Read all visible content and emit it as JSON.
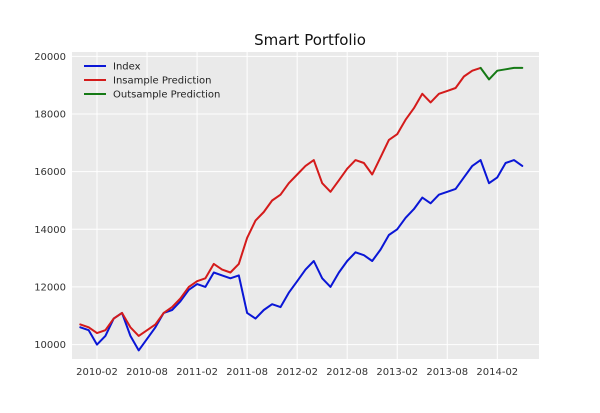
{
  "chart_data": {
    "type": "line",
    "title": "Smart Portfolio",
    "xlabel": "",
    "ylabel": "",
    "x_ticks": [
      "2010-02",
      "2010-08",
      "2011-02",
      "2011-08",
      "2012-02",
      "2012-08",
      "2013-02",
      "2013-08",
      "2014-02"
    ],
    "y_ticks": [
      "10000",
      "12000",
      "14000",
      "16000",
      "18000",
      "20000"
    ],
    "xlim": [
      "2009-11",
      "2014-07"
    ],
    "ylim": [
      9500,
      20150
    ],
    "grid": true,
    "legend_position": "top-left",
    "background": "#eaeaea",
    "series": [
      {
        "name": "Index",
        "color": "#0a16d6",
        "points": [
          [
            "2009-12",
            10600
          ],
          [
            "2010-01",
            10500
          ],
          [
            "2010-02",
            10000
          ],
          [
            "2010-03",
            10300
          ],
          [
            "2010-04",
            10900
          ],
          [
            "2010-05",
            11100
          ],
          [
            "2010-06",
            10300
          ],
          [
            "2010-07",
            9800
          ],
          [
            "2010-08",
            10200
          ],
          [
            "2010-09",
            10600
          ],
          [
            "2010-10",
            11100
          ],
          [
            "2010-11",
            11200
          ],
          [
            "2010-12",
            11500
          ],
          [
            "2011-01",
            11900
          ],
          [
            "2011-02",
            12100
          ],
          [
            "2011-03",
            12000
          ],
          [
            "2011-04",
            12500
          ],
          [
            "2011-05",
            12400
          ],
          [
            "2011-06",
            12300
          ],
          [
            "2011-07",
            12400
          ],
          [
            "2011-08",
            11100
          ],
          [
            "2011-09",
            10900
          ],
          [
            "2011-10",
            11200
          ],
          [
            "2011-11",
            11400
          ],
          [
            "2011-12",
            11300
          ],
          [
            "2012-01",
            11800
          ],
          [
            "2012-02",
            12200
          ],
          [
            "2012-03",
            12600
          ],
          [
            "2012-04",
            12900
          ],
          [
            "2012-05",
            12300
          ],
          [
            "2012-06",
            12000
          ],
          [
            "2012-07",
            12500
          ],
          [
            "2012-08",
            12900
          ],
          [
            "2012-09",
            13200
          ],
          [
            "2012-10",
            13100
          ],
          [
            "2012-11",
            12900
          ],
          [
            "2012-12",
            13300
          ],
          [
            "2013-01",
            13800
          ],
          [
            "2013-02",
            14000
          ],
          [
            "2013-03",
            14400
          ],
          [
            "2013-04",
            14700
          ],
          [
            "2013-05",
            15100
          ],
          [
            "2013-06",
            14900
          ],
          [
            "2013-07",
            15200
          ],
          [
            "2013-08",
            15300
          ],
          [
            "2013-09",
            15400
          ],
          [
            "2013-10",
            15800
          ],
          [
            "2013-11",
            16200
          ],
          [
            "2013-12",
            16400
          ],
          [
            "2014-01",
            15600
          ],
          [
            "2014-02",
            15800
          ],
          [
            "2014-03",
            16300
          ],
          [
            "2014-04",
            16400
          ],
          [
            "2014-05",
            16200
          ]
        ]
      },
      {
        "name": "Insample Prediction",
        "color": "#d41b1b",
        "points": [
          [
            "2009-12",
            10700
          ],
          [
            "2010-01",
            10600
          ],
          [
            "2010-02",
            10400
          ],
          [
            "2010-03",
            10500
          ],
          [
            "2010-04",
            10900
          ],
          [
            "2010-05",
            11100
          ],
          [
            "2010-06",
            10600
          ],
          [
            "2010-07",
            10300
          ],
          [
            "2010-08",
            10500
          ],
          [
            "2010-09",
            10700
          ],
          [
            "2010-10",
            11100
          ],
          [
            "2010-11",
            11300
          ],
          [
            "2010-12",
            11600
          ],
          [
            "2011-01",
            12000
          ],
          [
            "2011-02",
            12200
          ],
          [
            "2011-03",
            12300
          ],
          [
            "2011-04",
            12800
          ],
          [
            "2011-05",
            12600
          ],
          [
            "2011-06",
            12500
          ],
          [
            "2011-07",
            12800
          ],
          [
            "2011-08",
            13700
          ],
          [
            "2011-09",
            14300
          ],
          [
            "2011-10",
            14600
          ],
          [
            "2011-11",
            15000
          ],
          [
            "2011-12",
            15200
          ],
          [
            "2012-01",
            15600
          ],
          [
            "2012-02",
            15900
          ],
          [
            "2012-03",
            16200
          ],
          [
            "2012-04",
            16400
          ],
          [
            "2012-05",
            15600
          ],
          [
            "2012-06",
            15300
          ],
          [
            "2012-07",
            15700
          ],
          [
            "2012-08",
            16100
          ],
          [
            "2012-09",
            16400
          ],
          [
            "2012-10",
            16300
          ],
          [
            "2012-11",
            15900
          ],
          [
            "2012-12",
            16500
          ],
          [
            "2013-01",
            17100
          ],
          [
            "2013-02",
            17300
          ],
          [
            "2013-03",
            17800
          ],
          [
            "2013-04",
            18200
          ],
          [
            "2013-05",
            18700
          ],
          [
            "2013-06",
            18400
          ],
          [
            "2013-07",
            18700
          ],
          [
            "2013-08",
            18800
          ],
          [
            "2013-09",
            18900
          ],
          [
            "2013-10",
            19300
          ],
          [
            "2013-11",
            19500
          ],
          [
            "2013-12",
            19600
          ]
        ]
      },
      {
        "name": "Outsample Prediction",
        "color": "#157a15",
        "points": [
          [
            "2013-12",
            19600
          ],
          [
            "2014-01",
            19200
          ],
          [
            "2014-02",
            19500
          ],
          [
            "2014-03",
            19550
          ],
          [
            "2014-04",
            19600
          ],
          [
            "2014-05",
            19600
          ]
        ]
      }
    ]
  }
}
